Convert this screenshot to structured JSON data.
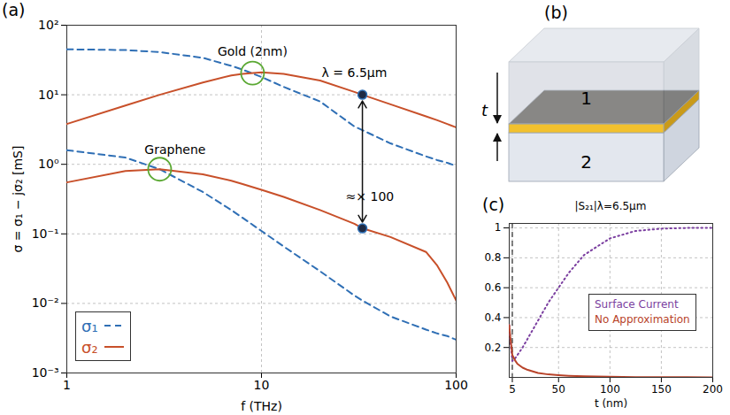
{
  "chart_data": [
    {
      "type": "line",
      "panel": "(a)",
      "log": true,
      "grid": true,
      "legend": "bottom-left",
      "xlabel": "f (THz)",
      "ylabel": "σ = σ₁ − jσ₂ [mS]",
      "xlim": [
        1,
        100
      ],
      "xticks": [
        1,
        10,
        100
      ],
      "ylim": [
        0.001,
        100
      ],
      "yticks": [
        {
          "value": 0.001,
          "label": "10⁻³"
        },
        {
          "value": 0.01,
          "label": "10⁻²"
        },
        {
          "value": 0.1,
          "label": "10⁻¹"
        },
        {
          "value": 1,
          "label": "10⁰"
        },
        {
          "value": 10,
          "label": "10¹"
        },
        {
          "value": 100,
          "label": "10²"
        }
      ],
      "x": [
        1,
        2,
        3,
        5,
        7,
        8,
        10,
        13,
        20,
        30,
        33,
        46,
        70,
        80,
        90,
        100
      ],
      "series": [
        {
          "name": "σ₁",
          "group": "Gold (2nm)",
          "color": "#2f6fb5",
          "line_style": "dashed",
          "values": [
            45,
            44,
            41,
            34,
            26,
            23,
            18,
            13,
            8,
            3.5,
            3.1,
            2,
            1.3,
            1.15,
            1.05,
            0.95
          ]
        },
        {
          "name": "σ₂",
          "group": "Gold (2nm)",
          "color": "#c8502a",
          "line_style": "solid",
          "values": [
            3.8,
            7,
            10,
            15,
            19,
            20,
            21,
            20,
            16,
            11,
            10,
            7.3,
            4.9,
            4.3,
            3.8,
            3.4
          ]
        },
        {
          "name": "σ₁",
          "group": "Graphene",
          "color": "#2f6fb5",
          "line_style": "dashed",
          "values": [
            1.6,
            1.25,
            0.85,
            0.4,
            0.22,
            0.17,
            0.11,
            0.066,
            0.029,
            0.013,
            0.011,
            0.0065,
            0.0042,
            0.0037,
            0.0034,
            0.003
          ]
        },
        {
          "name": "σ₂",
          "group": "Graphene",
          "color": "#c8502a",
          "line_style": "solid",
          "values": [
            0.55,
            0.8,
            0.85,
            0.72,
            0.58,
            0.52,
            0.43,
            0.34,
            0.22,
            0.14,
            0.12,
            0.09,
            0.055,
            0.035,
            0.02,
            0.011
          ]
        }
      ],
      "annotations": [
        {
          "text": "Gold (2nm)",
          "x": 9,
          "y": 36,
          "target": [
            9,
            20.5
          ]
        },
        {
          "text": "Graphene",
          "x": 3.6,
          "y": 1.4,
          "target": [
            3,
            0.85
          ]
        },
        {
          "text": "λ = 6.5μm",
          "x": 30,
          "y": 18
        },
        {
          "text": "≈× 100",
          "x": 36,
          "y": 0.3
        }
      ],
      "points": [
        {
          "x": 33,
          "y": 10
        },
        {
          "x": 33,
          "y": 0.12
        }
      ]
    },
    {
      "type": "line",
      "panel": "(c)",
      "title": "|S₂₁|λ=6.5μm",
      "grid": true,
      "legend": "bottom-right",
      "xlabel": "t (nm)",
      "xlim": [
        2,
        200
      ],
      "xticks": [
        5,
        50,
        100,
        150,
        200
      ],
      "ylim": [
        0,
        1.03
      ],
      "yticks": [
        0.2,
        0.4,
        0.6,
        0.8,
        1
      ],
      "vline": 5,
      "x": [
        2,
        3,
        5,
        8,
        10,
        15,
        20,
        30,
        40,
        50,
        60,
        75,
        100,
        125,
        150,
        175,
        200
      ],
      "series": [
        {
          "name": "Surface Current",
          "color": "#7b3fa0",
          "line_style": "dotted",
          "values": [
            0.35,
            0.25,
            0.11,
            0.13,
            0.15,
            0.2,
            0.26,
            0.38,
            0.5,
            0.6,
            0.7,
            0.82,
            0.93,
            0.98,
            0.995,
            1.0,
            1.0
          ]
        },
        {
          "name": "No Approximation",
          "color": "#b8432a",
          "line_style": "solid",
          "values": [
            0.35,
            0.27,
            0.15,
            0.11,
            0.09,
            0.065,
            0.05,
            0.03,
            0.02,
            0.015,
            0.011,
            0.007,
            0.004,
            0.002,
            0.001,
            0.001,
            0.0
          ]
        }
      ]
    }
  ],
  "diagram": {
    "panel": "(b)",
    "layers": [
      "1",
      "2"
    ],
    "dimension": "t"
  }
}
